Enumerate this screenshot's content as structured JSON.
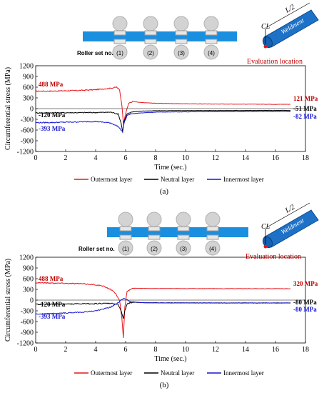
{
  "panels": [
    {
      "caption": "(a)",
      "roller_label": "Roller set no.",
      "roller_numbers": [
        "(1)",
        "(2)",
        "(3)",
        "(4)"
      ],
      "schematic": {
        "half_length": "L/2",
        "centerline": "CL",
        "weldment": "Weldment",
        "evaluation": "Evaluation location"
      },
      "legend": [
        {
          "name": "Outermost layer",
          "color": "#e8141b"
        },
        {
          "name": "Neutral layer",
          "color": "#000000"
        },
        {
          "name": "Innermost layer",
          "color": "#1515d0"
        }
      ]
    },
    {
      "caption": "(b)",
      "roller_label": "Roller set no.",
      "roller_numbers": [
        "(1)",
        "(2)",
        "(3)",
        "(4)"
      ],
      "schematic": {
        "half_length": "L/2",
        "centerline": "CL",
        "weldment": "Weldment",
        "evaluation": "Evaluation location"
      },
      "legend": [
        {
          "name": "Outermost layer",
          "color": "#e8141b"
        },
        {
          "name": "Neutral layer",
          "color": "#000000"
        },
        {
          "name": "Innermost layer",
          "color": "#1515d0"
        }
      ]
    }
  ],
  "chart_data": [
    {
      "type": "line",
      "xlabel": "Time (sec.)",
      "ylabel": "Circumferential stress (MPa)",
      "xlim": [
        0,
        18
      ],
      "ylim": [
        -1200,
        1200
      ],
      "xticks": [
        0,
        2,
        4,
        6,
        8,
        10,
        12,
        14,
        16,
        18
      ],
      "yticks": [
        1200,
        900,
        600,
        300,
        0,
        -300,
        -600,
        -900,
        -1200
      ],
      "grid": false,
      "series": [
        {
          "name": "Outermost layer",
          "color": "#e8141b",
          "x": [
            0,
            1,
            2,
            3,
            4,
            4.5,
            5,
            5.4,
            5.6,
            5.75,
            5.85,
            6.0,
            6.2,
            6.5,
            7,
            8,
            10,
            12,
            14,
            16,
            17
          ],
          "y": [
            488,
            490,
            500,
            510,
            530,
            550,
            570,
            600,
            520,
            100,
            -400,
            -150,
            150,
            200,
            170,
            150,
            135,
            128,
            125,
            121,
            121
          ]
        },
        {
          "name": "Neutral layer",
          "color": "#000000",
          "x": [
            0,
            2,
            4,
            5,
            5.5,
            5.7,
            5.8,
            5.9,
            6.1,
            6.5,
            7,
            8,
            10,
            12,
            14,
            16,
            17
          ],
          "y": [
            -120,
            -115,
            -110,
            -100,
            -150,
            -400,
            -650,
            -350,
            -150,
            -90,
            -70,
            -60,
            -55,
            -53,
            -52,
            -51,
            -51
          ]
        },
        {
          "name": "Innermost layer",
          "color": "#1515d0",
          "x": [
            0,
            1,
            2,
            3,
            4,
            5,
            5.5,
            5.7,
            5.8,
            5.9,
            6.1,
            6.3,
            7,
            8,
            10,
            12,
            14,
            16,
            17
          ],
          "y": [
            -393,
            -390,
            -380,
            -370,
            -360,
            -400,
            -500,
            -600,
            -650,
            -400,
            -200,
            -150,
            -120,
            -100,
            -90,
            -85,
            -83,
            -82,
            -82
          ]
        }
      ],
      "annotations": {
        "outer_start": "488 MPa",
        "neutral_start": "-120 MPa",
        "inner_start": "-393 MPa",
        "outer_end": "121 MPa",
        "neutral_end": "-51 MPa",
        "inner_end": "-82 MPa"
      }
    },
    {
      "type": "line",
      "xlabel": "Time (sec.)",
      "ylabel": "Circumferential stress (MPa)",
      "xlim": [
        0,
        18
      ],
      "ylim": [
        -1200,
        1200
      ],
      "xticks": [
        0,
        2,
        4,
        6,
        8,
        10,
        12,
        14,
        16,
        18
      ],
      "yticks": [
        1200,
        900,
        600,
        300,
        0,
        -300,
        -600,
        -900,
        -1200
      ],
      "grid": false,
      "series": [
        {
          "name": "Outermost layer",
          "color": "#e8141b",
          "x": [
            0,
            1,
            2,
            3,
            4,
            4.5,
            5,
            5.3,
            5.6,
            5.75,
            5.85,
            5.95,
            6.1,
            6.5,
            7,
            8,
            10,
            12,
            14,
            16,
            17
          ],
          "y": [
            488,
            480,
            470,
            460,
            430,
            390,
            300,
            200,
            0,
            -500,
            -1070,
            -200,
            250,
            330,
            330,
            325,
            322,
            321,
            320,
            320,
            320
          ]
        },
        {
          "name": "Neutral layer",
          "color": "#000000",
          "x": [
            0,
            2,
            4,
            5,
            5.5,
            5.7,
            5.85,
            5.95,
            6.1,
            6.5,
            7,
            8,
            10,
            12,
            14,
            16,
            17
          ],
          "y": [
            -120,
            -110,
            -100,
            -90,
            -120,
            -300,
            -530,
            -300,
            -100,
            -60,
            -70,
            -75,
            -78,
            -80,
            -80,
            -80,
            -80
          ]
        },
        {
          "name": "Innermost layer",
          "color": "#1515d0",
          "x": [
            0,
            1,
            2,
            3,
            4,
            5,
            5.4,
            5.7,
            5.85,
            6.0,
            6.2,
            6.5,
            7,
            8,
            10,
            12,
            14,
            16,
            17
          ],
          "y": [
            -393,
            -380,
            -360,
            -340,
            -300,
            -200,
            -100,
            0,
            50,
            30,
            -20,
            -50,
            -70,
            -75,
            -78,
            -80,
            -80,
            -80,
            -80
          ]
        }
      ],
      "annotations": {
        "outer_start": "488 MPa",
        "neutral_start": "-120 MPa",
        "inner_start": "-393 MPa",
        "outer_end": "320 MPa",
        "neutral_end": "-80 MPa",
        "inner_end": "-80 MPa"
      }
    }
  ]
}
